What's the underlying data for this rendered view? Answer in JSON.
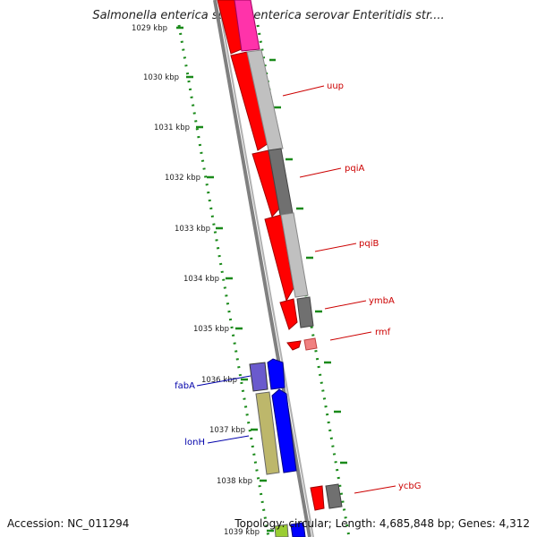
{
  "title": "Salmonella enterica subsp. enterica serovar Enteritidis str....",
  "footer": {
    "accession": "Accession: NC_011294",
    "stats": "Topology: circular; Length: 4,685,848 bp; Genes: 4,312"
  },
  "ticks": [
    "1029 kbp",
    "1030 kbp",
    "1031 kbp",
    "1032 kbp",
    "1033 kbp",
    "1034 kbp",
    "1035 kbp",
    "1036 kbp",
    "1037 kbp",
    "1038 kbp",
    "1039 kbp"
  ],
  "genes": [
    {
      "name": "uup",
      "color": "#cc0000"
    },
    {
      "name": "pqiA",
      "color": "#cc0000"
    },
    {
      "name": "pqiB",
      "color": "#cc0000"
    },
    {
      "name": "ymbA",
      "color": "#cc0000"
    },
    {
      "name": "rmf",
      "color": "#cc0000"
    },
    {
      "name": "fabA",
      "color": "#0000aa"
    },
    {
      "name": "lonH",
      "color": "#0000aa"
    },
    {
      "name": "ycbG",
      "color": "#cc0000"
    }
  ]
}
